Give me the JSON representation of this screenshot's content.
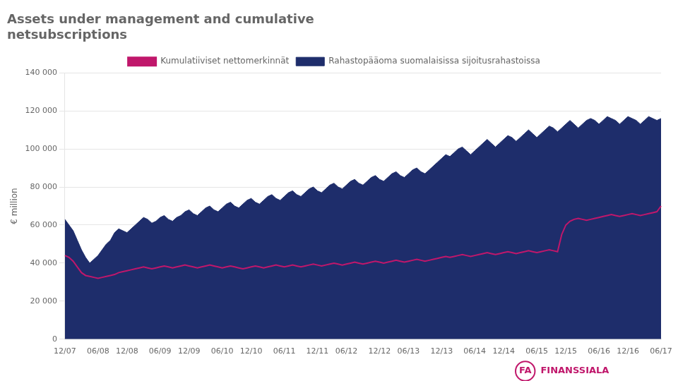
{
  "chart_data": {
    "type": "line",
    "title": [
      "Assets under management and cumulative",
      "netsubscriptions"
    ],
    "y_label": "€ million",
    "annotations": [
      "FA",
      "FINANSSIALA"
    ],
    "categories": [
      "12/07",
      null,
      null,
      null,
      null,
      null,
      null,
      null,
      "06/08",
      null,
      null,
      null,
      null,
      null,
      null,
      "12/08",
      null,
      null,
      null,
      null,
      null,
      null,
      null,
      "06/09",
      null,
      null,
      null,
      null,
      null,
      null,
      "12/09",
      null,
      null,
      null,
      null,
      null,
      null,
      null,
      "06/10",
      null,
      null,
      null,
      null,
      null,
      null,
      "12/10",
      null,
      null,
      null,
      null,
      null,
      null,
      null,
      "06/11",
      null,
      null,
      null,
      null,
      null,
      null,
      null,
      "12/11",
      null,
      null,
      null,
      null,
      null,
      null,
      "06/12",
      null,
      null,
      null,
      null,
      null,
      null,
      null,
      "12/12",
      null,
      null,
      null,
      null,
      null,
      null,
      "06/13",
      null,
      null,
      null,
      null,
      null,
      null,
      null,
      "12/13",
      null,
      null,
      null,
      null,
      null,
      null,
      null,
      "06/14",
      null,
      null,
      null,
      null,
      null,
      null,
      "12/14",
      null,
      null,
      null,
      null,
      null,
      null,
      null,
      "06/15",
      null,
      null,
      null,
      null,
      null,
      null,
      "12/15",
      null,
      null,
      null,
      null,
      null,
      null,
      null,
      "06/16",
      null,
      null,
      null,
      null,
      null,
      null,
      "12/16",
      null,
      null,
      null,
      null,
      null,
      null,
      null,
      "06/17"
    ],
    "series": [
      {
        "name": "Rahastopääoma suomalaisissa sijoitusrahastoissa",
        "type": "area",
        "color": "#1e2d6b",
        "values": [
          63000,
          60000,
          57000,
          52000,
          47000,
          43000,
          40000,
          42000,
          44000,
          47000,
          50000,
          52000,
          56000,
          58000,
          57000,
          56000,
          58000,
          60000,
          62000,
          64000,
          63000,
          61000,
          62000,
          64000,
          65000,
          63000,
          62000,
          64000,
          65000,
          67000,
          68000,
          66000,
          65000,
          67000,
          69000,
          70000,
          68000,
          67000,
          69000,
          71000,
          72000,
          70000,
          69000,
          71000,
          73000,
          74000,
          72000,
          71000,
          73000,
          75000,
          76000,
          74000,
          73000,
          75000,
          77000,
          78000,
          76000,
          75000,
          77000,
          79000,
          80000,
          78000,
          77000,
          79000,
          81000,
          82000,
          80000,
          79000,
          81000,
          83000,
          84000,
          82000,
          81000,
          83000,
          85000,
          86000,
          84000,
          83000,
          85000,
          87000,
          88000,
          86000,
          85000,
          87000,
          89000,
          90000,
          88000,
          87000,
          89000,
          91000,
          93000,
          95000,
          97000,
          96000,
          98000,
          100000,
          101000,
          99000,
          97000,
          99000,
          101000,
          103000,
          105000,
          103000,
          101000,
          103000,
          105000,
          107000,
          106000,
          104000,
          106000,
          108000,
          110000,
          108000,
          106000,
          108000,
          110000,
          112000,
          111000,
          109000,
          111000,
          113000,
          115000,
          113000,
          111000,
          113000,
          115000,
          116000,
          115000,
          113000,
          115000,
          117000,
          116000,
          115000,
          113000,
          115000,
          117000,
          116000,
          115000,
          113000,
          115000,
          117000,
          116000,
          115000,
          116000
        ]
      },
      {
        "name": "Kumulatiiviset nettomerkinnät",
        "type": "line",
        "color": "#c0176b",
        "values": [
          44000,
          43000,
          41000,
          38000,
          35000,
          33500,
          33000,
          32500,
          32000,
          32500,
          33000,
          33500,
          34000,
          35000,
          35500,
          36000,
          36500,
          37000,
          37500,
          38000,
          37500,
          37000,
          37500,
          38000,
          38500,
          38000,
          37500,
          38000,
          38500,
          39000,
          38500,
          38000,
          37500,
          38000,
          38500,
          39000,
          38500,
          38000,
          37500,
          38000,
          38500,
          38000,
          37500,
          37000,
          37500,
          38000,
          38500,
          38000,
          37500,
          38000,
          38500,
          39000,
          38500,
          38000,
          38500,
          39000,
          38500,
          38000,
          38500,
          39000,
          39500,
          39000,
          38500,
          39000,
          39500,
          40000,
          39500,
          39000,
          39500,
          40000,
          40500,
          40000,
          39500,
          40000,
          40500,
          41000,
          40500,
          40000,
          40500,
          41000,
          41500,
          41000,
          40500,
          41000,
          41500,
          42000,
          41500,
          41000,
          41500,
          42000,
          42500,
          43000,
          43500,
          43000,
          43500,
          44000,
          44500,
          44000,
          43500,
          44000,
          44500,
          45000,
          45500,
          45000,
          44500,
          45000,
          45500,
          46000,
          45500,
          45000,
          45500,
          46000,
          46500,
          46000,
          45500,
          46000,
          46500,
          47000,
          46500,
          46000,
          55000,
          60000,
          62000,
          63000,
          63500,
          63000,
          62500,
          63000,
          63500,
          64000,
          64500,
          65000,
          65500,
          65000,
          64500,
          65000,
          65500,
          66000,
          65500,
          65000,
          65500,
          66000,
          66500,
          67000,
          70000
        ]
      }
    ],
    "ylim": [
      0,
      140000
    ],
    "yticks": [
      0,
      {
        "value": 20000,
        "label": "20 000"
      },
      {
        "value": 40000,
        "label": "40 000"
      },
      {
        "value": 60000,
        "label": "60 000"
      },
      {
        "value": 80000,
        "label": "80 000"
      },
      {
        "value": 100000,
        "label": "100 000"
      },
      {
        "value": 120000,
        "label": "120 000"
      },
      {
        "value": 140000,
        "label": "140 000"
      }
    ],
    "grid": true,
    "legend": "top"
  }
}
